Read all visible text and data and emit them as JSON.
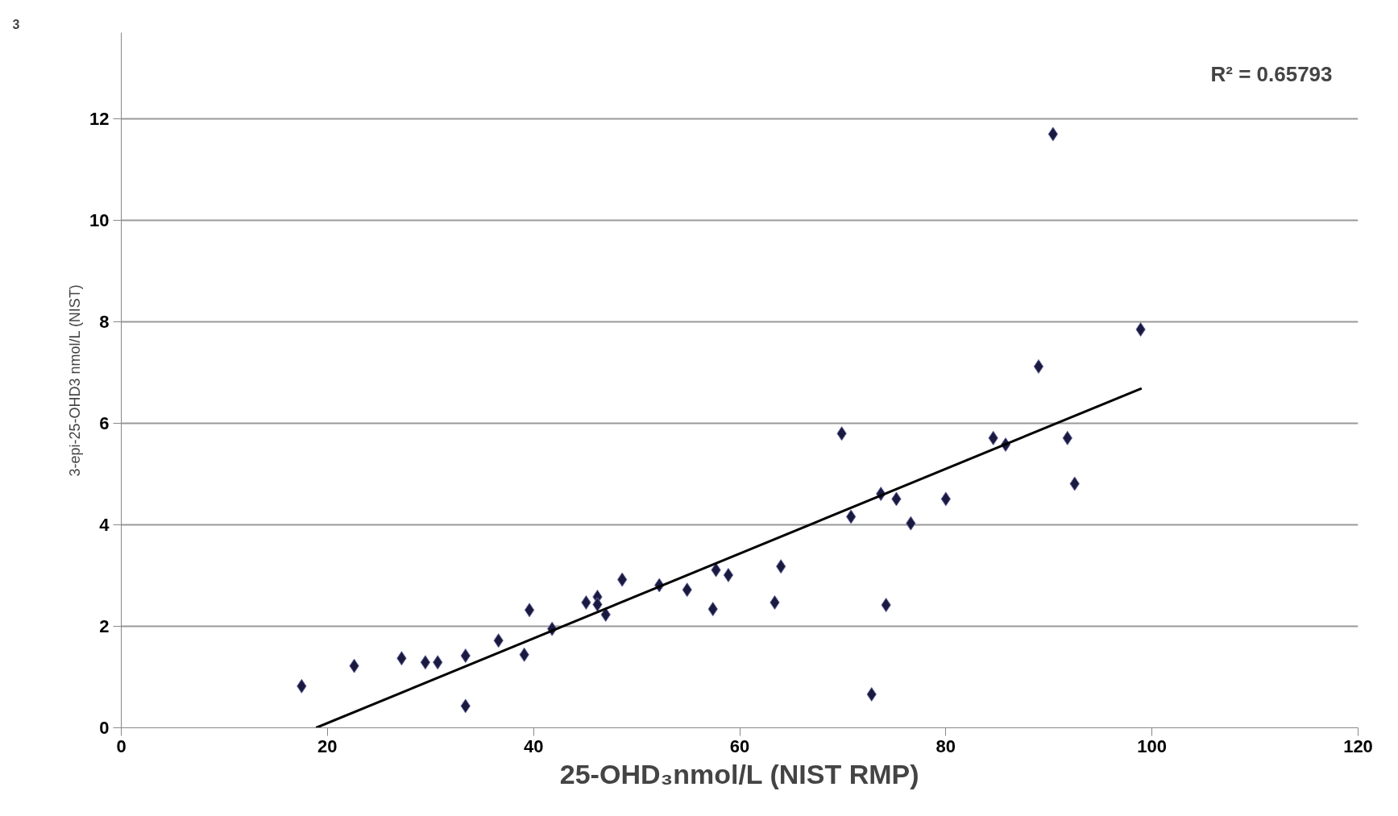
{
  "chart_data": {
    "type": "scatter",
    "xlabel": "25-OHD₃nmol/L (NIST RMP)",
    "ylabel": "3-epi-25-OHD3 nmol/L (NIST)",
    "annotations": [
      "R² = 0.65793",
      "3"
    ],
    "marker": "diamond",
    "grid": "y",
    "xlim": [
      0,
      120
    ],
    "xticks": [
      0,
      20,
      40,
      60,
      80,
      100,
      120
    ],
    "ylim": [
      0,
      13.7
    ],
    "yticks": [
      0,
      2,
      4,
      6,
      8,
      10,
      12
    ],
    "series": [
      {
        "color": "#1a1a40",
        "x": [
          17.5,
          22.6,
          27.2,
          29.5,
          30.7,
          33.4,
          33.4,
          36.6,
          39.1,
          39.6,
          41.8,
          45.1,
          46.2,
          46.2,
          47.0,
          48.6,
          52.2,
          54.9,
          57.4,
          57.7,
          58.9,
          63.4,
          64.0,
          69.9,
          70.8,
          72.8,
          73.7,
          74.2,
          75.2,
          76.6,
          80.0,
          84.6,
          85.8,
          89.0,
          90.4,
          91.8,
          92.5,
          98.9
        ],
        "values": [
          0.82,
          1.22,
          1.37,
          1.29,
          1.29,
          1.42,
          0.43,
          1.72,
          1.44,
          2.32,
          1.95,
          2.47,
          2.58,
          2.43,
          2.23,
          2.92,
          2.81,
          2.72,
          2.34,
          3.11,
          3.01,
          2.47,
          3.18,
          5.8,
          4.16,
          0.66,
          4.61,
          2.42,
          4.51,
          4.03,
          4.51,
          5.71,
          5.58,
          7.12,
          11.7,
          5.71,
          4.81,
          7.85
        ]
      },
      {
        "type": "line",
        "marker": "none",
        "color": "#000000",
        "x": [
          18.9,
          99.0
        ],
        "values": [
          0,
          6.69
        ]
      }
    ]
  }
}
